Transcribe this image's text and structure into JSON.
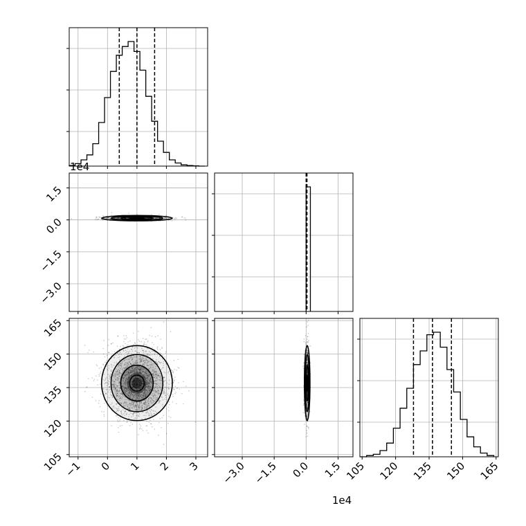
{
  "chart_data": {
    "type": "corner",
    "grid": true,
    "colors": {
      "line": "#000000",
      "grid": "#b0b0b0",
      "density": "#000000"
    },
    "parameters": [
      {
        "tick_values": [
          -1,
          0,
          1,
          2,
          3
        ],
        "tick_labels": [
          "−1",
          "0",
          "1",
          "2",
          "3"
        ],
        "range": [
          -1.3,
          3.4
        ],
        "offset_label": ""
      },
      {
        "tick_values": [
          -3.0,
          -1.5,
          0.0,
          1.5
        ],
        "tick_labels": [
          "−3.0",
          "−1.5",
          "0.0",
          "1.5"
        ],
        "range": [
          -4.3,
          2.2
        ],
        "offset_label": "1e4"
      },
      {
        "tick_values": [
          105,
          120,
          135,
          150,
          165
        ],
        "tick_labels": [
          "105",
          "120",
          "135",
          "150",
          "165"
        ],
        "range": [
          104,
          166
        ],
        "offset_label": ""
      }
    ],
    "histograms": [
      {
        "parameter": 0,
        "bin_edges": [
          -1.3,
          -1.1,
          -0.9,
          -0.7,
          -0.5,
          -0.3,
          -0.1,
          0.1,
          0.3,
          0.5,
          0.7,
          0.9,
          1.1,
          1.3,
          1.5,
          1.7,
          1.9,
          2.1,
          2.3,
          2.5,
          2.7,
          2.9,
          3.1,
          3.3
        ],
        "counts": [
          0.005,
          0.02,
          0.05,
          0.09,
          0.18,
          0.35,
          0.55,
          0.76,
          0.89,
          0.96,
          1.0,
          0.92,
          0.77,
          0.56,
          0.36,
          0.2,
          0.11,
          0.05,
          0.025,
          0.01,
          0.005,
          0.002,
          0.0
        ],
        "quantiles": [
          0.4,
          1.0,
          1.6
        ]
      },
      {
        "parameter": 1,
        "bin_edges": [
          0.0,
          0.2
        ],
        "counts": [
          1.0
        ],
        "quantiles": [
          0.0,
          0.02,
          0.04
        ]
      },
      {
        "parameter": 2,
        "bin_edges": [
          104,
          107,
          110,
          113,
          116,
          119,
          122,
          125,
          128,
          131,
          134,
          137,
          140,
          143,
          146,
          149,
          152,
          155,
          158,
          161,
          164
        ],
        "counts": [
          0.0,
          0.01,
          0.02,
          0.05,
          0.11,
          0.23,
          0.39,
          0.55,
          0.74,
          0.85,
          0.98,
          1.0,
          0.88,
          0.7,
          0.52,
          0.3,
          0.16,
          0.08,
          0.03,
          0.01
        ],
        "quantiles": [
          128,
          136.5,
          145
        ]
      }
    ],
    "scatter_2d": [
      {
        "x_param": 0,
        "y_param": 1,
        "center": [
          1.0,
          0.08
        ],
        "spread": [
          0.55,
          0.06
        ]
      },
      {
        "x_param": 0,
        "y_param": 2,
        "center": [
          1.0,
          137
        ],
        "spread": [
          0.55,
          8
        ]
      },
      {
        "x_param": 1,
        "y_param": 2,
        "center": [
          0.05,
          137
        ],
        "spread": [
          0.06,
          8
        ]
      }
    ]
  }
}
